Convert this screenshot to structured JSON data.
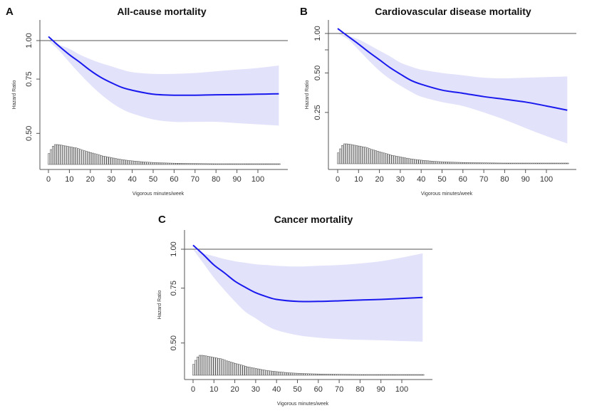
{
  "figure": {
    "colors": {
      "line": "#1a1aee",
      "band": "#e2e2fb",
      "axis": "#555555",
      "reference": "#555555",
      "histogram": "#444444"
    }
  },
  "chart_data": [
    {
      "panel": "A",
      "type": "line",
      "title": "All-cause mortality",
      "xlabel": "Vigorous minutes/week",
      "ylabel": "Hazard Ratio",
      "yscale": "log",
      "ylim": [
        0.43,
        1.1
      ],
      "xlim": [
        -4,
        112
      ],
      "xticks": [
        0,
        10,
        20,
        30,
        40,
        50,
        60,
        70,
        80,
        90,
        100
      ],
      "yticks": [
        {
          "value": 1.0,
          "label": "1.00"
        },
        {
          "value": 0.75,
          "label": "0.75"
        },
        {
          "value": 0.5,
          "label": "0.50"
        }
      ],
      "reference_line": 1.0,
      "x": [
        0,
        5,
        10,
        15,
        20,
        25,
        30,
        35,
        40,
        50,
        60,
        70,
        80,
        90,
        100,
        110
      ],
      "hr": [
        1.03,
        0.96,
        0.9,
        0.85,
        0.8,
        0.76,
        0.73,
        0.705,
        0.69,
        0.67,
        0.665,
        0.665,
        0.667,
        0.668,
        0.67,
        0.672
      ],
      "ci_upper": [
        1.0,
        0.97,
        0.94,
        0.9,
        0.87,
        0.845,
        0.825,
        0.805,
        0.79,
        0.78,
        0.78,
        0.785,
        0.795,
        0.805,
        0.815,
        0.83
      ],
      "ci_lower": [
        1.0,
        0.93,
        0.85,
        0.78,
        0.72,
        0.67,
        0.63,
        0.6,
        0.58,
        0.555,
        0.545,
        0.545,
        0.545,
        0.54,
        0.535,
        0.53
      ],
      "histogram_note": "distribution of vigorous minutes/week, peak near 5"
    },
    {
      "panel": "B",
      "type": "line",
      "title": "Cardiovascular disease mortality",
      "xlabel": "Vigorous minutes/week",
      "ylabel": "Hazard Ratio",
      "yscale": "log",
      "ylim": [
        0.05,
        1.15
      ],
      "xlim": [
        -4,
        112
      ],
      "xticks": [
        0,
        10,
        20,
        30,
        40,
        50,
        60,
        70,
        80,
        90,
        100
      ],
      "yticks": [
        {
          "value": 1.0,
          "label": "1.00"
        },
        {
          "value": 0.75,
          "label": ""
        },
        {
          "value": 0.5,
          "label": "0.50"
        },
        {
          "value": 0.25,
          "label": "0.25"
        }
      ],
      "reference_line": 1.0,
      "x": [
        0,
        5,
        10,
        15,
        20,
        25,
        30,
        35,
        40,
        50,
        60,
        70,
        80,
        90,
        100,
        110
      ],
      "hr": [
        1.09,
        0.95,
        0.83,
        0.72,
        0.63,
        0.55,
        0.49,
        0.44,
        0.41,
        0.37,
        0.35,
        0.33,
        0.315,
        0.3,
        0.28,
        0.26
      ],
      "ci_upper": [
        1.0,
        0.96,
        0.9,
        0.82,
        0.74,
        0.67,
        0.6,
        0.56,
        0.53,
        0.5,
        0.48,
        0.46,
        0.455,
        0.46,
        0.465,
        0.47
      ],
      "ci_lower": [
        1.0,
        0.9,
        0.75,
        0.62,
        0.52,
        0.45,
        0.4,
        0.36,
        0.33,
        0.3,
        0.28,
        0.25,
        0.22,
        0.19,
        0.165,
        0.145
      ]
    },
    {
      "panel": "C",
      "type": "line",
      "title": "Cancer mortality",
      "xlabel": "Vigorous minutes/week",
      "ylabel": "Hazard Ratio",
      "yscale": "log",
      "ylim": [
        0.43,
        1.12
      ],
      "xlim": [
        -4,
        112
      ],
      "xticks": [
        0,
        10,
        20,
        30,
        40,
        50,
        60,
        70,
        80,
        90,
        100
      ],
      "yticks": [
        {
          "value": 1.0,
          "label": "1.00"
        },
        {
          "value": 0.75,
          "label": "0.75"
        },
        {
          "value": 0.5,
          "label": "0.50"
        }
      ],
      "reference_line": 1.0,
      "x": [
        0,
        5,
        10,
        15,
        20,
        25,
        30,
        35,
        40,
        50,
        60,
        70,
        80,
        90,
        100,
        110
      ],
      "hr": [
        1.03,
        0.96,
        0.89,
        0.84,
        0.79,
        0.755,
        0.725,
        0.705,
        0.69,
        0.68,
        0.68,
        0.683,
        0.687,
        0.69,
        0.695,
        0.7
      ],
      "ci_upper": [
        1.0,
        0.97,
        0.95,
        0.93,
        0.915,
        0.905,
        0.895,
        0.89,
        0.885,
        0.88,
        0.885,
        0.89,
        0.9,
        0.915,
        0.94,
        0.97
      ],
      "ci_lower": [
        1.0,
        0.9,
        0.81,
        0.74,
        0.68,
        0.63,
        0.6,
        0.57,
        0.55,
        0.53,
        0.52,
        0.515,
        0.512,
        0.51,
        0.507,
        0.505
      ]
    }
  ],
  "histogram_profile": [
    0.55,
    0.75,
    0.92,
    1.0,
    1.0,
    0.99,
    0.97,
    0.95,
    0.93,
    0.91,
    0.89,
    0.87,
    0.85,
    0.83,
    0.8,
    0.76,
    0.72,
    0.69,
    0.66,
    0.63,
    0.6,
    0.57,
    0.54,
    0.51,
    0.48,
    0.45,
    0.42,
    0.4,
    0.38,
    0.36,
    0.34,
    0.32,
    0.3,
    0.28,
    0.26,
    0.245,
    0.23,
    0.215,
    0.2,
    0.19,
    0.18,
    0.17,
    0.16,
    0.15,
    0.14,
    0.13,
    0.12,
    0.115,
    0.11,
    0.105,
    0.1,
    0.095,
    0.09,
    0.085,
    0.08,
    0.078,
    0.075,
    0.072,
    0.07,
    0.067,
    0.065,
    0.062,
    0.06,
    0.058,
    0.056,
    0.054,
    0.052,
    0.05,
    0.048,
    0.046,
    0.045,
    0.044,
    0.043,
    0.042,
    0.041,
    0.04,
    0.039,
    0.038,
    0.037,
    0.036,
    0.035,
    0.034,
    0.033,
    0.032,
    0.031,
    0.03,
    0.03,
    0.029,
    0.029,
    0.028,
    0.028,
    0.027,
    0.027,
    0.026,
    0.026,
    0.025,
    0.025,
    0.024,
    0.024,
    0.023,
    0.023,
    0.022,
    0.022,
    0.021,
    0.021,
    0.02,
    0.02,
    0.02,
    0.02,
    0.02,
    0.02
  ]
}
